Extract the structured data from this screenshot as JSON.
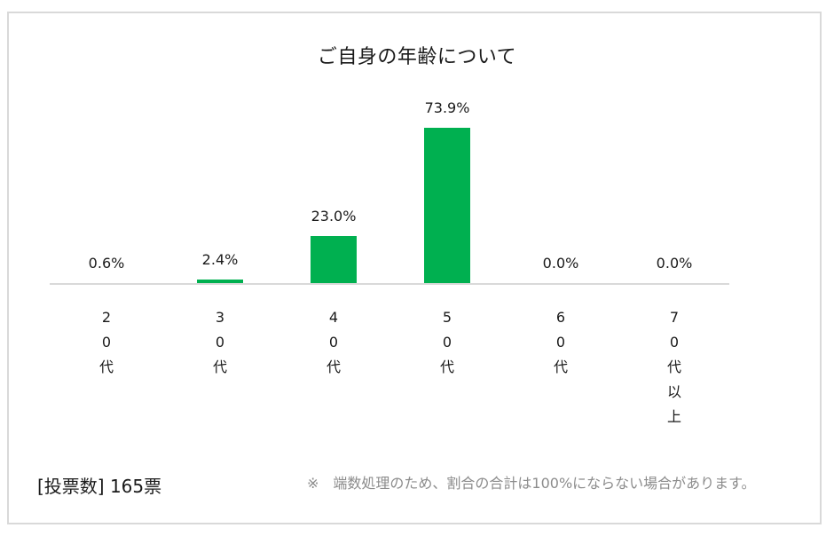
{
  "header": {
    "title": "ご自身の年齢について"
  },
  "footer": {
    "votes_label": "[投票数] 165票",
    "note": "※　端数処理のため、割合の合計は100%にならない場合があります。"
  },
  "colors": {
    "bar": "#00b050",
    "axis": "#d9d9d9",
    "border": "#d9d9d9",
    "note_text": "#8c8c8c"
  },
  "bars": [
    {
      "category": "20代",
      "label_chars": [
        "2",
        "0",
        "代"
      ],
      "value": 0.6,
      "value_label": "0.6%"
    },
    {
      "category": "30代",
      "label_chars": [
        "3",
        "0",
        "代"
      ],
      "value": 2.4,
      "value_label": "2.4%"
    },
    {
      "category": "40代",
      "label_chars": [
        "4",
        "0",
        "代"
      ],
      "value": 23.0,
      "value_label": "23.0%"
    },
    {
      "category": "50代",
      "label_chars": [
        "5",
        "0",
        "代"
      ],
      "value": 73.9,
      "value_label": "73.9%"
    },
    {
      "category": "60代",
      "label_chars": [
        "6",
        "0",
        "代"
      ],
      "value": 0.0,
      "value_label": "0.0%"
    },
    {
      "category": "70代以上",
      "label_chars": [
        "7",
        "0",
        "代",
        "以",
        "上"
      ],
      "value": 0.0,
      "value_label": "0.0%"
    }
  ],
  "chart_data": {
    "type": "bar",
    "title": "ご自身の年齢について",
    "categories": [
      "20代",
      "30代",
      "40代",
      "50代",
      "60代",
      "70代以上"
    ],
    "values": [
      0.6,
      2.4,
      23.0,
      73.9,
      0.0,
      0.0
    ],
    "value_labels": [
      "0.6%",
      "2.4%",
      "23.0%",
      "73.9%",
      "0.0%",
      "0.0%"
    ],
    "xlabel": "",
    "ylabel": "",
    "unit": "%",
    "ylim": [
      0,
      80
    ],
    "grid": false,
    "legend": "none",
    "bar_color": "#00b050",
    "annotations": [
      "[投票数] 165票",
      "※　端数処理のため、割合の合計は100%にならない場合があります。"
    ]
  }
}
